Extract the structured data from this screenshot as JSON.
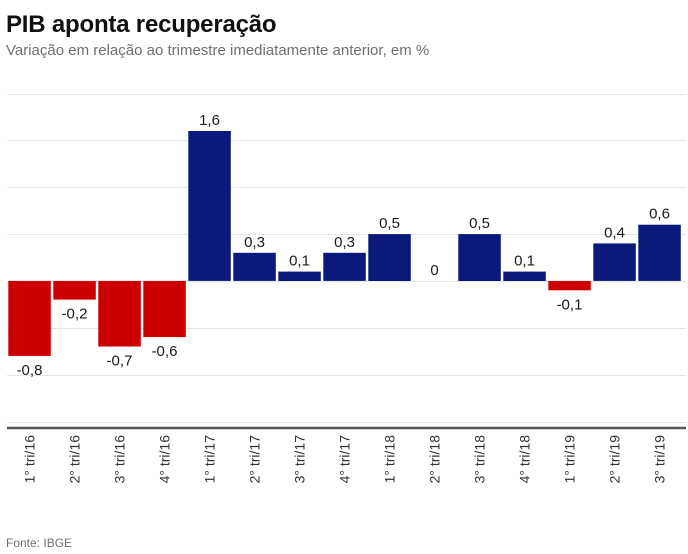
{
  "header": {
    "title": "PIB aponta recuperação",
    "subtitle": "Variação em relação ao trimestre imediatamente anterior, em %"
  },
  "footer": {
    "source": "Fonte: IBGE"
  },
  "colors": {
    "positive": "#0b1a7a",
    "negative": "#cc0000",
    "grid": "#e6e6e6",
    "axis": "#555555"
  },
  "chart_data": {
    "type": "bar",
    "title": "PIB aponta recuperação",
    "subtitle": "Variação em relação ao trimestre imediatamente anterior, em %",
    "xlabel": "",
    "ylabel": "",
    "categories": [
      "1° tri/16",
      "2° tri/16",
      "3° tri/16",
      "4° tri/16",
      "1° tri/17",
      "2° tri/17",
      "3° tri/17",
      "4° tri/17",
      "1° tri/18",
      "2° tri/18",
      "3° tri/18",
      "4° tri/18",
      "1° tri/19",
      "2° tri/19",
      "3° tri/19"
    ],
    "values": [
      -0.8,
      -0.2,
      -0.7,
      -0.6,
      1.6,
      0.3,
      0.1,
      0.3,
      0.5,
      0,
      0.5,
      0.1,
      -0.1,
      0.4,
      0.6
    ],
    "value_labels": [
      "-0,8",
      "-0,2",
      "-0,7",
      "-0,6",
      "1,6",
      "0,3",
      "0,1",
      "0,3",
      "0,5",
      "0",
      "0,5",
      "0,1",
      "-0,1",
      "0,4",
      "0,6"
    ],
    "ylim": [
      -1.5,
      2.0
    ],
    "grid": true,
    "grid_step": 0.5,
    "y_tick_labels_visible": false,
    "legend": "none",
    "source": "Fonte: IBGE"
  }
}
